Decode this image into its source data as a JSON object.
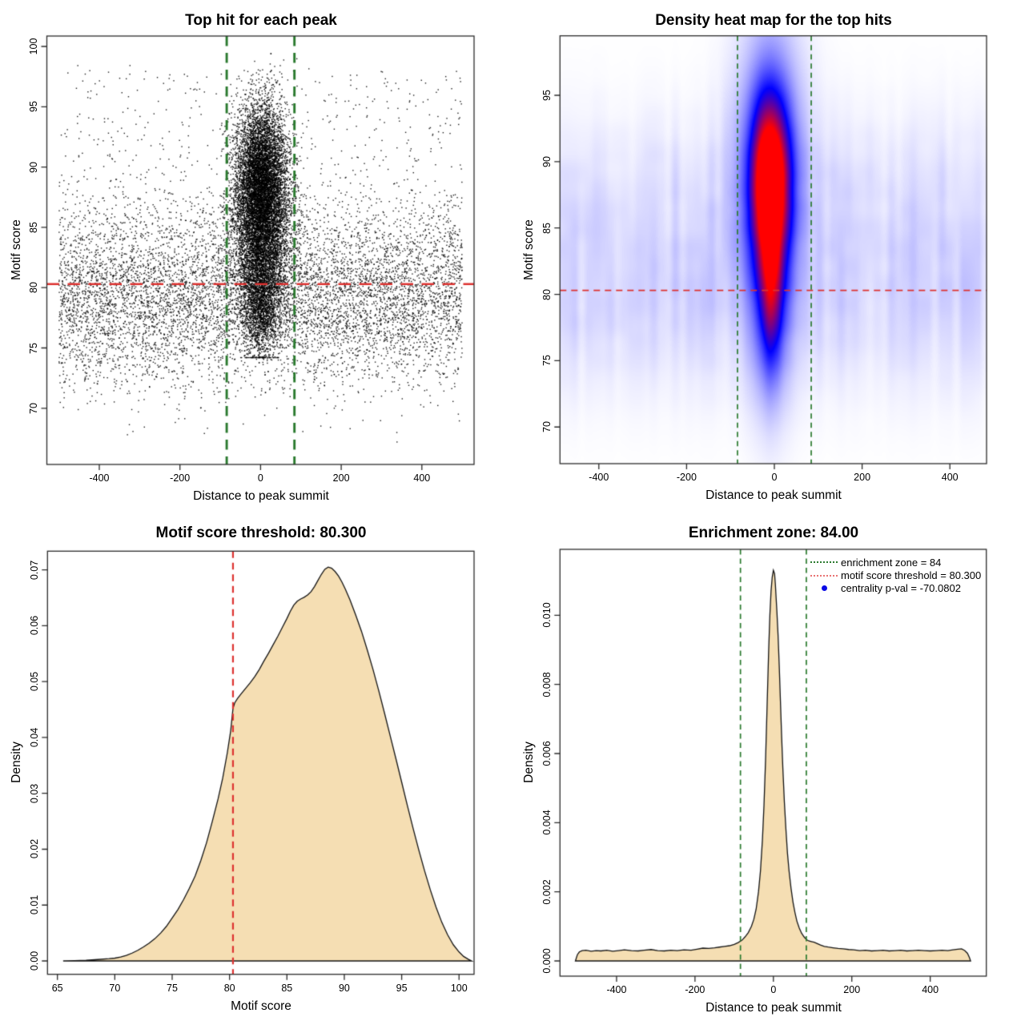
{
  "colors": {
    "point": "#000000",
    "threshold_red": "#DD3230",
    "zone_green": "#2A7A2E",
    "fill_wheat": "#F5DEB3",
    "curve_stroke": "#141414",
    "legend_red": "#E87272",
    "legend_blue": "#0A0AE6",
    "box_stroke": "#2B2B2B",
    "heat_colormap": [
      "#FFFFFF",
      "#0000FF",
      "#FF0000"
    ]
  },
  "chart_data": [
    {
      "type": "scatter",
      "title": "Top hit for each peak",
      "xlabel": "Distance to peak summit",
      "ylabel": "Motif score",
      "xlim": [
        -530,
        530
      ],
      "ylim": [
        65.2,
        100.9
      ],
      "xticks": {
        "labels": [
          "-400",
          "-200",
          "0",
          "200",
          "400"
        ],
        "values": [
          -400,
          -200,
          0,
          200,
          400
        ]
      },
      "yticks": {
        "labels": [
          "70",
          "75",
          "80",
          "85",
          "90",
          "95",
          "100"
        ],
        "values": [
          70,
          75,
          80,
          85,
          90,
          95,
          100
        ]
      },
      "threshold_line": {
        "y": 80.3,
        "style": "dashed",
        "color_ref": "threshold_red"
      },
      "zone_lines": {
        "x": [
          -84,
          84
        ],
        "style": "dashed",
        "color_ref": "zone_green"
      },
      "points_model": {
        "seed": 1337,
        "n_total": 21320,
        "core": {
          "n": 13000,
          "components": [
            {
              "w": 0.58,
              "x0": 2,
              "sx": 33,
              "y0": 88.8,
              "sy": 3.3,
              "yclip": [
                80,
                99.4
              ]
            },
            {
              "w": 0.27,
              "x0": 2,
              "sx": 36,
              "y0": 83.8,
              "sy": 3.0,
              "yclip": [
                76,
                92
              ]
            },
            {
              "w": 0.15,
              "x0": 0,
              "sx": 24,
              "y0": 78.6,
              "sy": 2.3,
              "yclip": [
                74.2,
                84
              ]
            }
          ]
        },
        "background": {
          "n": 8300,
          "x_range": [
            -500,
            500
          ],
          "y_mean": 79.2,
          "y_sd": 3.6,
          "y_clip": [
            67.2,
            96.0
          ],
          "high_fraction": 0.08,
          "high_range": [
            84,
            98
          ]
        },
        "outliers": {
          "n": 20,
          "x_range": [
            -480,
            480
          ],
          "y_range": [
            96.2,
            98.6
          ]
        }
      }
    },
    {
      "type": "heatmap",
      "title": "Density heat map for the top hits",
      "xlabel": "Distance to peak summit",
      "ylabel": "Motif score",
      "xlim": [
        -492,
        484
      ],
      "ylim": [
        67.2,
        99.5
      ],
      "xticks": {
        "labels": [
          "-400",
          "-200",
          "0",
          "200",
          "400"
        ],
        "values": [
          -400,
          -200,
          0,
          200,
          400
        ]
      },
      "yticks": {
        "labels": [
          "70",
          "75",
          "80",
          "85",
          "90",
          "95"
        ],
        "values": [
          70,
          75,
          80,
          85,
          90,
          95
        ]
      },
      "threshold_line": {
        "y": 80.3,
        "style": "dashed",
        "color_ref": "threshold_red"
      },
      "zone_lines": {
        "x": [
          -84,
          84
        ],
        "style": "dashed",
        "color_ref": "zone_green"
      },
      "density_model": {
        "hotspot": {
          "x": -10,
          "y": 88.4
        },
        "components": [
          {
            "amp": 1.1,
            "x": -10,
            "y": 88.4,
            "sx": 30,
            "sy": 4.3
          },
          {
            "amp": 0.42,
            "x": -6,
            "y": 80.2,
            "sx": 20,
            "sy": 3.6
          },
          {
            "amp": 0.3,
            "x": -10,
            "y": 90.0,
            "sx": 55,
            "sy": 8.0
          },
          {
            "amp": 0.18,
            "x": -8,
            "y": 77.0,
            "sx": 30,
            "sy": 5.0
          }
        ],
        "background": {
          "seed": 11,
          "band1": {
            "amp": 0.045,
            "amp_noise": 0.075,
            "y": 79.6,
            "sy": 5.0
          },
          "band2": {
            "amp": 0.02,
            "amp_noise": 0.05,
            "y": 88.0,
            "sy": 4.6
          },
          "noise2d_amp": 0.02
        }
      }
    },
    {
      "type": "density",
      "title": "Motif score threshold: 80.300",
      "xlabel": "Motif score",
      "ylabel": "Density",
      "xlim": [
        64.1,
        101.9
      ],
      "ylim": [
        -0.0024,
        0.0734
      ],
      "xticks": {
        "labels": [
          "65",
          "70",
          "75",
          "80",
          "85",
          "90",
          "95",
          "100"
        ],
        "values": [
          65,
          70,
          75,
          80,
          85,
          90,
          95,
          100
        ]
      },
      "yticks": {
        "labels": [
          "0.00",
          "0.01",
          "0.02",
          "0.03",
          "0.04",
          "0.05",
          "0.06",
          "0.07"
        ],
        "values": [
          0,
          0.01,
          0.02,
          0.03,
          0.04,
          0.05,
          0.06,
          0.07
        ]
      },
      "threshold": 80.3,
      "threshold_line": {
        "x": 80.3,
        "style": "dashed",
        "color_ref": "threshold_red"
      },
      "curve": [
        [
          65.5,
          0
        ],
        [
          66.5,
          5e-05
        ],
        [
          67.5,
          0.00012
        ],
        [
          68.5,
          0.00025
        ],
        [
          69.5,
          0.0004
        ],
        [
          70,
          0.0005
        ],
        [
          70.5,
          0.0007
        ],
        [
          71,
          0.001
        ],
        [
          71.5,
          0.0014
        ],
        [
          72,
          0.0019
        ],
        [
          72.5,
          0.0025
        ],
        [
          73,
          0.0032
        ],
        [
          73.5,
          0.004
        ],
        [
          74,
          0.005
        ],
        [
          74.5,
          0.0062
        ],
        [
          75,
          0.0077
        ],
        [
          75.5,
          0.0092
        ],
        [
          76,
          0.011
        ],
        [
          76.5,
          0.013
        ],
        [
          77,
          0.0152
        ],
        [
          77.5,
          0.018
        ],
        [
          78,
          0.0212
        ],
        [
          78.5,
          0.025
        ],
        [
          79,
          0.029
        ],
        [
          79.4,
          0.0327
        ],
        [
          79.8,
          0.0372
        ],
        [
          80.1,
          0.0412
        ],
        [
          80.3,
          0.0452
        ],
        [
          80.45,
          0.0462
        ],
        [
          80.7,
          0.047
        ],
        [
          81,
          0.0478
        ],
        [
          81.4,
          0.0488
        ],
        [
          81.8,
          0.0498
        ],
        [
          82.2,
          0.0509
        ],
        [
          82.6,
          0.0522
        ],
        [
          83,
          0.0537
        ],
        [
          83.4,
          0.0551
        ],
        [
          83.8,
          0.0566
        ],
        [
          84.2,
          0.0581
        ],
        [
          84.6,
          0.0597
        ],
        [
          85,
          0.0613
        ],
        [
          85.3,
          0.0626
        ],
        [
          85.6,
          0.0637
        ],
        [
          85.9,
          0.0644
        ],
        [
          86.2,
          0.0648
        ],
        [
          86.5,
          0.0651
        ],
        [
          86.8,
          0.0655
        ],
        [
          87.1,
          0.0661
        ],
        [
          87.4,
          0.067
        ],
        [
          87.7,
          0.0681
        ],
        [
          88,
          0.0692
        ],
        [
          88.3,
          0.0701
        ],
        [
          88.6,
          0.0705
        ],
        [
          88.9,
          0.0703
        ],
        [
          89.2,
          0.0697
        ],
        [
          89.5,
          0.0689
        ],
        [
          89.8,
          0.0678
        ],
        [
          90.1,
          0.0665
        ],
        [
          90.5,
          0.0646
        ],
        [
          91,
          0.0619
        ],
        [
          91.5,
          0.059
        ],
        [
          92,
          0.0557
        ],
        [
          92.5,
          0.0522
        ],
        [
          93,
          0.0484
        ],
        [
          93.5,
          0.0444
        ],
        [
          94,
          0.0403
        ],
        [
          94.5,
          0.0362
        ],
        [
          95,
          0.032
        ],
        [
          95.5,
          0.0278
        ],
        [
          96,
          0.0237
        ],
        [
          96.5,
          0.0198
        ],
        [
          97,
          0.0161
        ],
        [
          97.5,
          0.0127
        ],
        [
          98,
          0.0096
        ],
        [
          98.5,
          0.0069
        ],
        [
          99,
          0.0047
        ],
        [
          99.5,
          0.0029
        ],
        [
          100,
          0.0016
        ],
        [
          100.4,
          0.0008
        ],
        [
          100.8,
          0.0003
        ],
        [
          101.1,
          0
        ]
      ]
    },
    {
      "type": "density",
      "title": "Enrichment zone: 84.00",
      "xlabel": "Distance to peak summit",
      "ylabel": "Density",
      "xlim": [
        -540,
        520
      ],
      "ylim": [
        -0.00038,
        0.0117
      ],
      "xticks": {
        "labels": [
          "-400",
          "-200",
          "0",
          "200",
          "400"
        ],
        "values": [
          -400,
          -200,
          0,
          200,
          400
        ]
      },
      "yticks": {
        "labels": [
          "0.000",
          "0.002",
          "0.004",
          "0.006",
          "0.008",
          "0.010"
        ],
        "values": [
          0,
          0.002,
          0.004,
          0.006,
          0.008,
          0.01
        ]
      },
      "zone": 84,
      "zone_lines": {
        "x": [
          -84,
          84
        ],
        "style": "dashed",
        "color_ref": "zone_green"
      },
      "curve": [
        [
          -505,
          0
        ],
        [
          -500,
          0.00018
        ],
        [
          -495,
          0.00026
        ],
        [
          -488,
          0.0003
        ],
        [
          -478,
          0.00031
        ],
        [
          -465,
          0.00028
        ],
        [
          -452,
          0.0003
        ],
        [
          -440,
          0.00029
        ],
        [
          -425,
          0.00031
        ],
        [
          -410,
          0.00028
        ],
        [
          -395,
          0.0003
        ],
        [
          -380,
          0.00032
        ],
        [
          -362,
          0.0003
        ],
        [
          -345,
          0.00029
        ],
        [
          -330,
          0.00031
        ],
        [
          -312,
          0.00033
        ],
        [
          -295,
          0.0003
        ],
        [
          -278,
          0.00029
        ],
        [
          -262,
          0.00031
        ],
        [
          -245,
          0.0003
        ],
        [
          -228,
          0.00032
        ],
        [
          -210,
          0.00031
        ],
        [
          -195,
          0.00034
        ],
        [
          -180,
          0.00037
        ],
        [
          -165,
          0.00036
        ],
        [
          -150,
          0.00038
        ],
        [
          -138,
          0.0004
        ],
        [
          -125,
          0.00042
        ],
        [
          -112,
          0.00044
        ],
        [
          -100,
          0.00048
        ],
        [
          -90,
          0.00053
        ],
        [
          -80,
          0.0006
        ],
        [
          -72,
          0.0007
        ],
        [
          -64,
          0.00082
        ],
        [
          -56,
          0.001
        ],
        [
          -50,
          0.0012
        ],
        [
          -44,
          0.0015
        ],
        [
          -38,
          0.002
        ],
        [
          -33,
          0.0026
        ],
        [
          -28,
          0.0035
        ],
        [
          -24,
          0.0045
        ],
        [
          -20,
          0.0058
        ],
        [
          -16,
          0.0074
        ],
        [
          -12,
          0.009
        ],
        [
          -9,
          0.01
        ],
        [
          -6,
          0.0107
        ],
        [
          -3,
          0.0111
        ],
        [
          0,
          0.0113
        ],
        [
          3,
          0.0112
        ],
        [
          5,
          0.0109
        ],
        [
          7,
          0.0105
        ],
        [
          9,
          0.0101
        ],
        [
          12,
          0.0094
        ],
        [
          15,
          0.0085
        ],
        [
          18,
          0.0075
        ],
        [
          21,
          0.0065
        ],
        [
          24,
          0.0056
        ],
        [
          28,
          0.0046
        ],
        [
          32,
          0.0038
        ],
        [
          36,
          0.0031
        ],
        [
          40,
          0.0026
        ],
        [
          45,
          0.0021
        ],
        [
          50,
          0.0017
        ],
        [
          55,
          0.0014
        ],
        [
          60,
          0.00115
        ],
        [
          66,
          0.00095
        ],
        [
          72,
          0.0008
        ],
        [
          78,
          0.0007
        ],
        [
          84,
          0.00062
        ],
        [
          90,
          0.00058
        ],
        [
          97,
          0.00056
        ],
        [
          104,
          0.00054
        ],
        [
          112,
          0.0005
        ],
        [
          120,
          0.00046
        ],
        [
          130,
          0.00042
        ],
        [
          140,
          0.0004
        ],
        [
          152,
          0.00038
        ],
        [
          165,
          0.00036
        ],
        [
          178,
          0.00035
        ],
        [
          192,
          0.00033
        ],
        [
          205,
          0.00032
        ],
        [
          220,
          0.0003
        ],
        [
          235,
          0.00031
        ],
        [
          250,
          0.00029
        ],
        [
          265,
          0.0003
        ],
        [
          280,
          0.00031
        ],
        [
          295,
          0.00029
        ],
        [
          310,
          0.0003
        ],
        [
          325,
          0.00031
        ],
        [
          340,
          0.00029
        ],
        [
          355,
          0.0003
        ],
        [
          370,
          0.00031
        ],
        [
          385,
          0.0003
        ],
        [
          400,
          0.00029
        ],
        [
          415,
          0.0003
        ],
        [
          430,
          0.00031
        ],
        [
          445,
          0.0003
        ],
        [
          458,
          0.00032
        ],
        [
          470,
          0.00034
        ],
        [
          480,
          0.00035
        ],
        [
          488,
          0.0003
        ],
        [
          495,
          0.00022
        ],
        [
          500,
          0.0001
        ],
        [
          503,
          0
        ]
      ],
      "legend": {
        "items": [
          {
            "swatch": "dotted-line",
            "color": "#2A7A2E",
            "label": "enrichment zone = 84"
          },
          {
            "swatch": "dotted-line",
            "color": "#E87272",
            "label": "motif score threshold = 80.300"
          },
          {
            "swatch": "dot",
            "color": "#0A0AE6",
            "label": "centrality p-val = -70.0802"
          }
        ]
      }
    }
  ]
}
